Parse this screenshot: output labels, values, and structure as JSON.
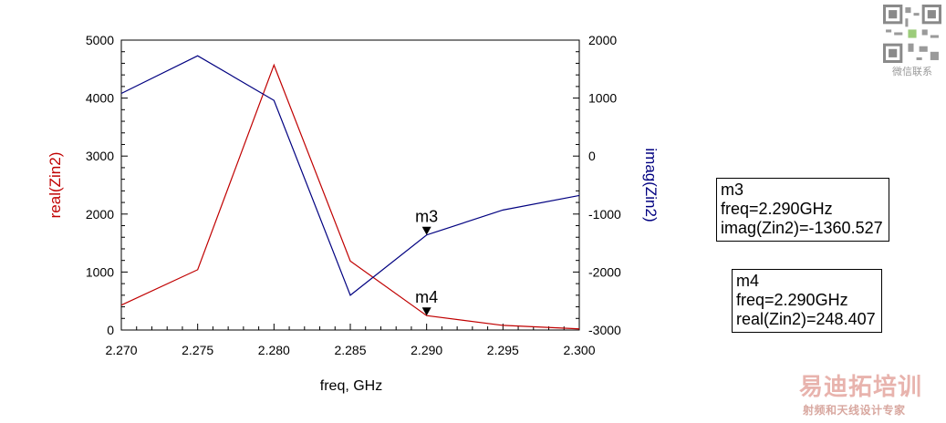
{
  "chart_data": {
    "type": "line",
    "title": "",
    "xlabel": "freq, GHz",
    "ylabel_left": "real(Zin2)",
    "ylabel_right": "imag(Zin2)",
    "x": [
      2.27,
      2.275,
      2.28,
      2.285,
      2.29,
      2.295,
      2.3
    ],
    "xlim": [
      2.27,
      2.3
    ],
    "ylim_left": [
      0,
      5000
    ],
    "ylim_right": [
      -3000,
      2000
    ],
    "x_ticks": [
      "2.270",
      "2.275",
      "2.280",
      "2.285",
      "2.290",
      "2.295",
      "2.300"
    ],
    "y_ticks_left": [
      "0",
      "1000",
      "2000",
      "3000",
      "4000",
      "5000"
    ],
    "y_ticks_right": [
      "-3000",
      "-2000",
      "-1000",
      "0",
      "1000",
      "2000"
    ],
    "grid": false,
    "series": [
      {
        "name": "real(Zin2)",
        "axis": "left",
        "color": "#c00000",
        "values": [
          430,
          1040,
          4570,
          1190,
          248.407,
          80,
          20
        ]
      },
      {
        "name": "imag(Zin2)",
        "axis": "right",
        "color": "#000080",
        "values": [
          1080,
          1730,
          960,
          -2400,
          -1360.527,
          -930,
          -680
        ]
      }
    ],
    "markers": [
      {
        "name": "m3",
        "series": "imag(Zin2)",
        "x": 2.29,
        "value": -1360.527,
        "readout_freq": "freq=2.290GHz",
        "readout_value": "imag(Zin2)=-1360.527"
      },
      {
        "name": "m4",
        "series": "real(Zin2)",
        "x": 2.29,
        "value": 248.407,
        "readout_freq": "freq=2.290GHz",
        "readout_value": "real(Zin2)=248.407"
      }
    ]
  },
  "watermark": {
    "qr_caption": "微信联系",
    "logo_text": "易迪拓培训",
    "tagline": "射频和天线设计专家"
  }
}
